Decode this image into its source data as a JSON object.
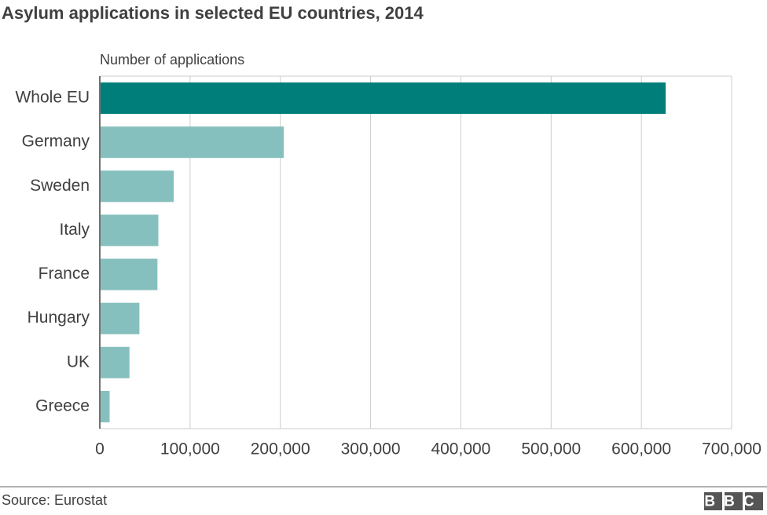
{
  "chart_data": {
    "type": "bar",
    "orientation": "horizontal",
    "title": "Asylum applications in selected EU countries, 2014",
    "x_label": "Number of applications",
    "categories": [
      "Whole EU",
      "Germany",
      "Sweden",
      "Italy",
      "France",
      "Hungary",
      "UK",
      "Greece"
    ],
    "values": [
      626000,
      203000,
      81000,
      64000,
      63000,
      43000,
      32000,
      10000
    ],
    "colors": [
      "#007f7a",
      "#86c0be",
      "#86c0be",
      "#86c0be",
      "#86c0be",
      "#86c0be",
      "#86c0be",
      "#86c0be"
    ],
    "xlim": [
      0,
      700000
    ],
    "xticks": [
      0,
      {
        "value": 100000,
        "label": "100,000"
      },
      {
        "value": 200000,
        "label": "200,000"
      },
      {
        "value": 300000,
        "label": "300,000"
      },
      {
        "value": 400000,
        "label": "400,000"
      },
      {
        "value": 500000,
        "label": "500,000"
      },
      {
        "value": 600000,
        "label": "600,000"
      },
      {
        "value": 700000,
        "label": "700,000"
      }
    ],
    "grid": true,
    "source": "Source: Eurostat",
    "logo": "BBC"
  }
}
